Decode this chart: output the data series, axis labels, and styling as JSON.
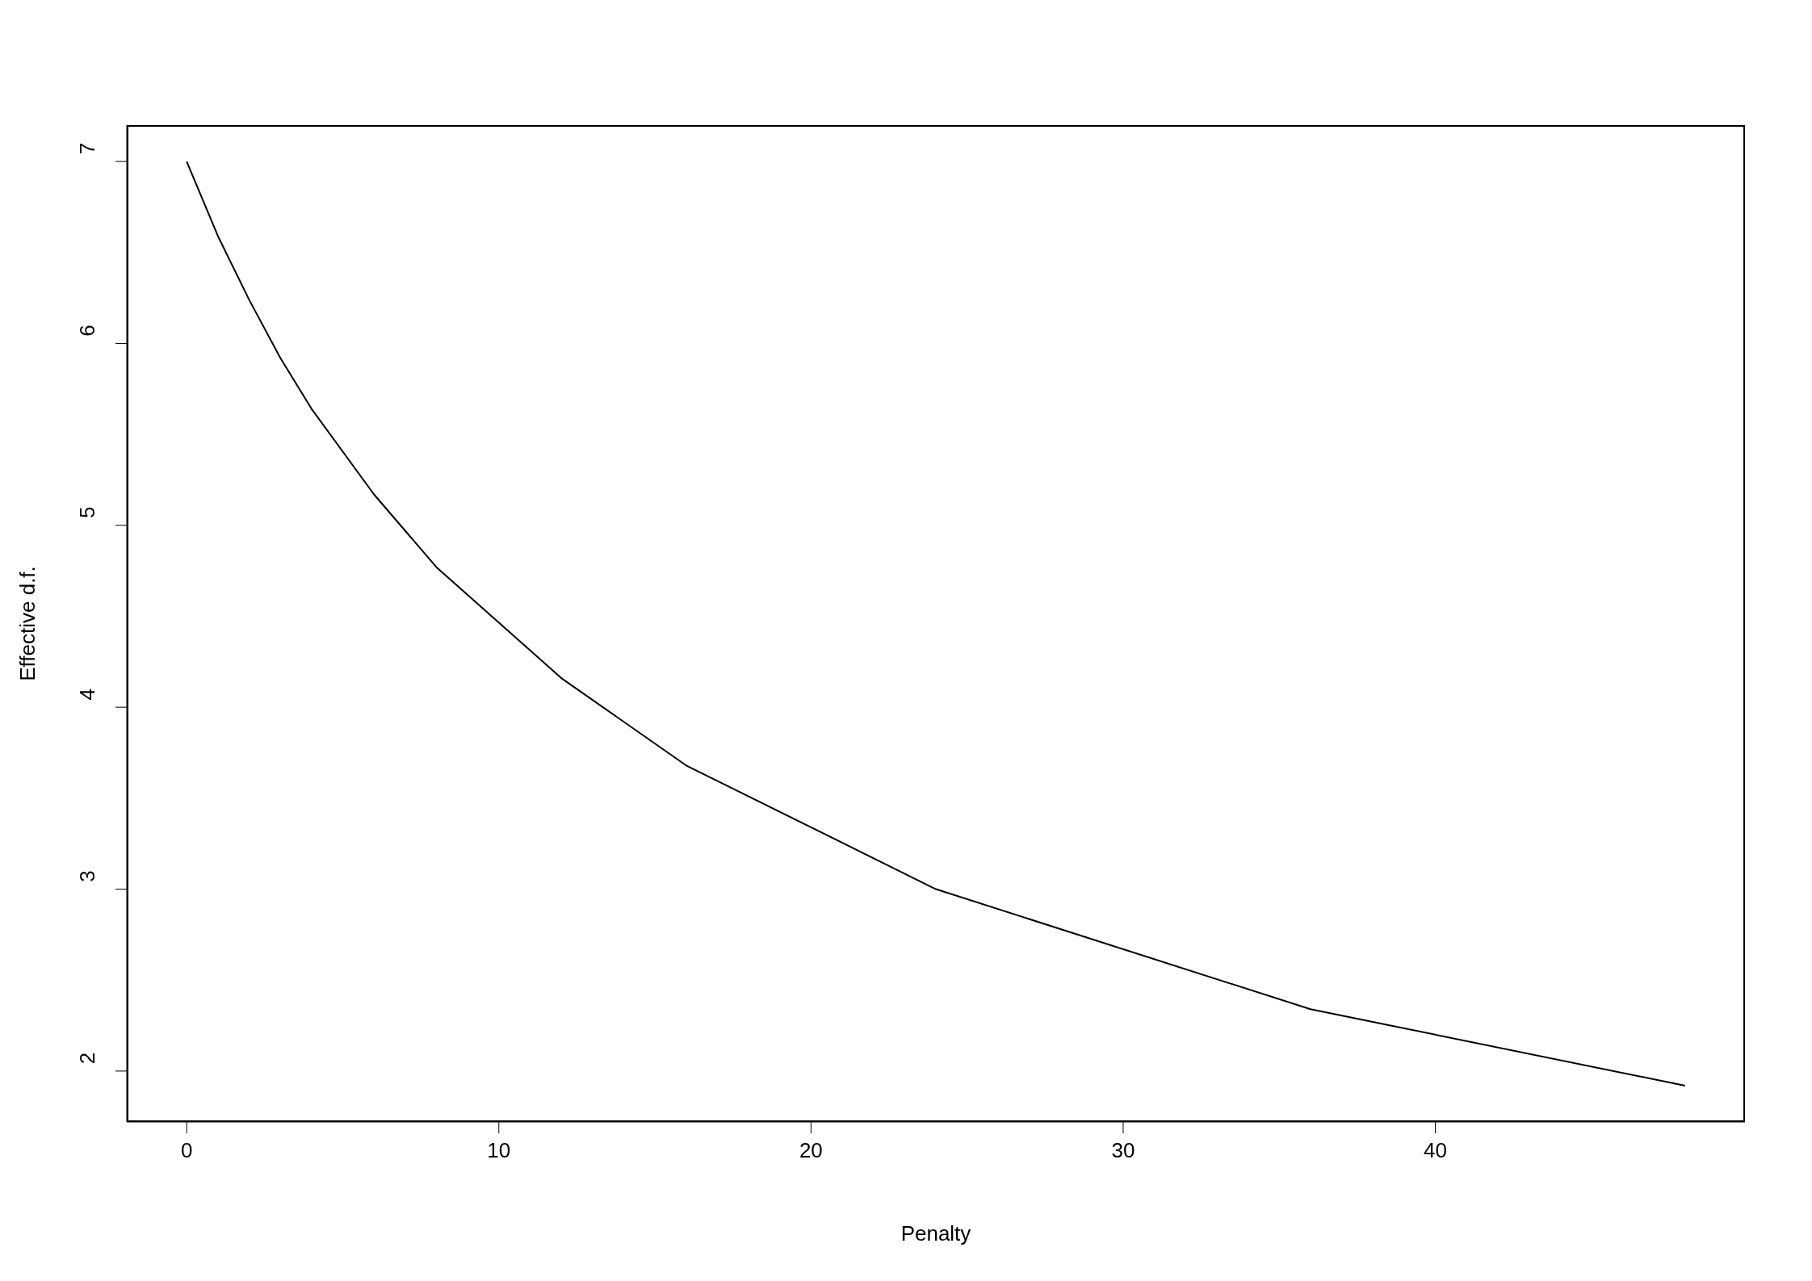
{
  "chart_data": {
    "type": "line",
    "xlabel": "Penalty",
    "ylabel": "Effective d.f.",
    "x": [
      0,
      1,
      2,
      3,
      4,
      6,
      8,
      12,
      16,
      24,
      36,
      48
    ],
    "series": [
      {
        "color": "#000000",
        "values": [
          7,
          6.59,
          6.24,
          5.92,
          5.64,
          5.17,
          4.77,
          4.16,
          3.68,
          3.0,
          2.34,
          1.92
        ]
      }
    ],
    "xlim": [
      -1.92,
      49.92
    ],
    "xticks": [
      0,
      10,
      20,
      30,
      40
    ],
    "ylim": [
      1.72,
      7.2
    ],
    "yticks": [
      2,
      3,
      4,
      5,
      6,
      7
    ],
    "grid": false,
    "legend": false,
    "marker": "none",
    "line_style": "solid"
  }
}
